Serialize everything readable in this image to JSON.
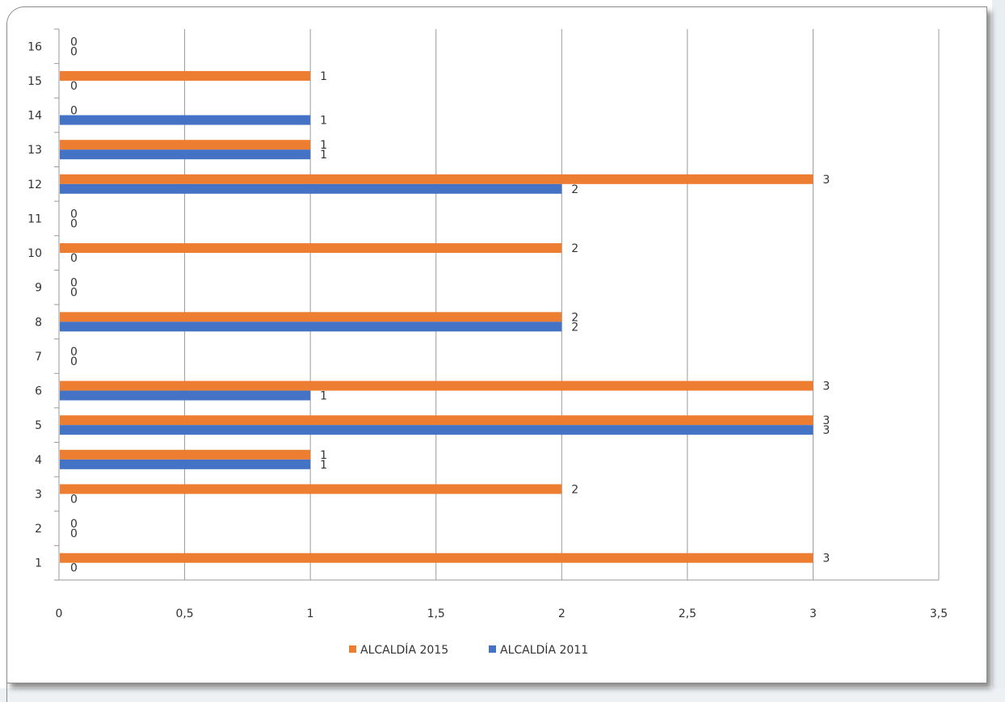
{
  "chart_data": {
    "type": "bar",
    "orientation": "horizontal",
    "categories": [
      "1",
      "2",
      "3",
      "4",
      "5",
      "6",
      "7",
      "8",
      "9",
      "10",
      "11",
      "12",
      "13",
      "14",
      "15",
      "16"
    ],
    "series": [
      {
        "name": "ALCALDÍA 2015",
        "color": "#ED7D31",
        "values": [
          3,
          0,
          2,
          1,
          3,
          3,
          0,
          2,
          0,
          2,
          0,
          3,
          1,
          0,
          1,
          0
        ]
      },
      {
        "name": "ALCALDÍA 2011",
        "color": "#4472C4",
        "values": [
          0,
          0,
          0,
          1,
          3,
          1,
          0,
          2,
          0,
          0,
          0,
          2,
          1,
          1,
          0,
          0
        ]
      }
    ],
    "x_ticks": [
      "0",
      "0,5",
      "1",
      "1,5",
      "2",
      "2,5",
      "3",
      "3,5"
    ],
    "xlim": [
      0,
      3.5
    ],
    "grid": "vertical",
    "legend": "bottom",
    "title": "",
    "xlabel": "",
    "ylabel": ""
  }
}
